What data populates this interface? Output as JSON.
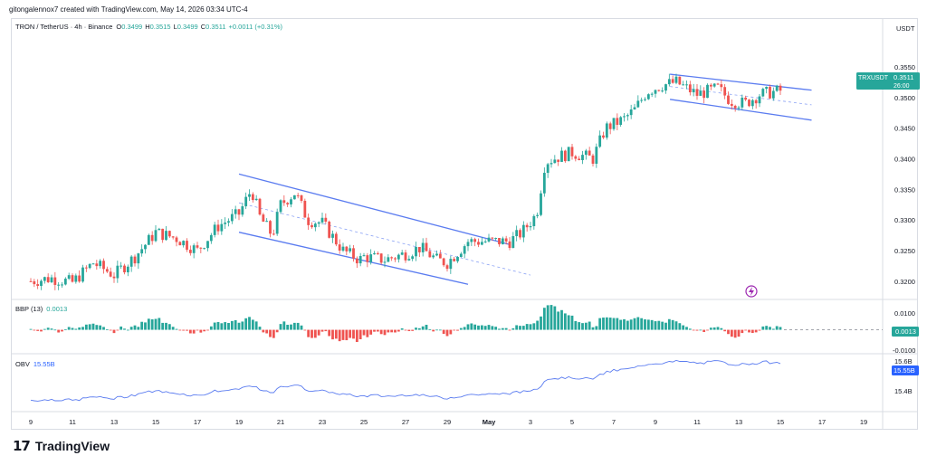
{
  "header": {
    "credit": "gitongalennox7 created with TradingView.com, May 14, 2026 03:34 UTC-4"
  },
  "legend": {
    "symbol": "TRON / TetherUS · 4h · Binance",
    "o_label": "O",
    "o": "0.3499",
    "h_label": "H",
    "h": "0.3515",
    "l_label": "L",
    "l": "0.3499",
    "c_label": "C",
    "c": "0.3511",
    "change": "+0.0011 (+0.31%)"
  },
  "price_axis": {
    "currency": "USDT",
    "ticks": [
      "0.3550",
      "0.3500",
      "0.3450",
      "0.3400",
      "0.3350",
      "0.3300",
      "0.3250",
      "0.3200"
    ],
    "last_label": "TRXUSDT",
    "last_price": "0.3511",
    "countdown": "26:00"
  },
  "bbp": {
    "label": "BBP (13)",
    "value": "0.0013",
    "ticks": [
      "0.0100",
      "-0.0100"
    ],
    "last": "0.0013"
  },
  "obv": {
    "label": "OBV",
    "value": "15.55B",
    "ticks": [
      "15.6B",
      "15.4B"
    ],
    "last": "15.55B"
  },
  "time_axis": {
    "labels": [
      "9",
      "11",
      "13",
      "15",
      "17",
      "19",
      "21",
      "23",
      "25",
      "27",
      "29",
      "May",
      "3",
      "5",
      "7",
      "9",
      "11",
      "13",
      "15",
      "17",
      "19"
    ]
  },
  "colors": {
    "up": "#26a69a",
    "down": "#ef5350",
    "channel": "#5b7cf0",
    "obv_line": "#5b7cf0",
    "last_bg": "#26a69a",
    "obv_bg": "#2962ff"
  },
  "brand": {
    "logo_icon": "tradingview-logo-icon",
    "name": "TradingView"
  },
  "chart_data": {
    "type": "candlestick",
    "interval": "4h",
    "ylim": [
      0.3185,
      0.3575
    ],
    "close_anchors": [
      [
        "Apr 9",
        0.32
      ],
      [
        "Apr 10",
        0.3205
      ],
      [
        "Apr 11",
        0.3198
      ],
      [
        "Apr 12",
        0.323
      ],
      [
        "Apr 13",
        0.321
      ],
      [
        "Apr 14",
        0.324
      ],
      [
        "Apr 15",
        0.328
      ],
      [
        "Apr 16",
        0.327
      ],
      [
        "Apr 17",
        0.325
      ],
      [
        "Apr 18",
        0.329
      ],
      [
        "Apr 19",
        0.331
      ],
      [
        "Apr 19.6",
        0.335
      ],
      [
        "Apr 20",
        0.3305
      ],
      [
        "Apr 20.6",
        0.3275
      ],
      [
        "Apr 21",
        0.3325
      ],
      [
        "Apr 21.7",
        0.3345
      ],
      [
        "Apr 22.3",
        0.33
      ],
      [
        "Apr 23",
        0.3295
      ],
      [
        "Apr 24",
        0.325
      ],
      [
        "Apr 24.8",
        0.3235
      ],
      [
        "Apr 25",
        0.324
      ],
      [
        "Apr 26",
        0.3235
      ],
      [
        "Apr 27",
        0.3245
      ],
      [
        "Apr 27.7",
        0.3255
      ],
      [
        "Apr 28.5",
        0.3235
      ],
      [
        "Apr 29",
        0.323
      ],
      [
        "Apr 30",
        0.3265
      ],
      [
        "May 1",
        0.3265
      ],
      [
        "May 1.6",
        0.328
      ],
      [
        "May 2.3",
        0.331
      ],
      [
        "May 2.7",
        0.3395
      ],
      [
        "May 3.5",
        0.3405
      ],
      [
        "May 4",
        0.341
      ],
      [
        "May 5",
        0.34
      ],
      [
        "May 5.6",
        0.345
      ],
      [
        "May 6.5",
        0.3465
      ],
      [
        "May 7",
        0.348
      ],
      [
        "May 7.6",
        0.351
      ],
      [
        "May 8.3",
        0.352
      ],
      [
        "May 9",
        0.3525
      ],
      [
        "May 10",
        0.3505
      ],
      [
        "May 11",
        0.3515
      ],
      [
        "May 11.6",
        0.3495
      ],
      [
        "May 12.3",
        0.349
      ],
      [
        "May 13",
        0.3505
      ],
      [
        "May 14",
        0.3511
      ]
    ],
    "channels": [
      {
        "name": "",
        "upper": [
          [
            "Apr 19",
            0.3375
          ],
          [
            "May 1",
            0.326
          ]
        ],
        "lower": [
          [
            "Apr 19",
            0.328
          ],
          [
            "Apr 30",
            0.3195
          ]
        ],
        "mid": [
          [
            "Apr 19",
            0.3328
          ],
          [
            "May 2",
            0.321
          ]
        ]
      },
      {
        "name": "",
        "upper": [
          [
            "May 8.7",
            0.3538
          ],
          [
            "May 15.5",
            0.3512
          ]
        ],
        "lower": [
          [
            "May 8.7",
            0.3497
          ],
          [
            "May 15.5",
            0.3463
          ]
        ],
        "mid": [
          [
            "May 8.7",
            0.3518
          ],
          [
            "May 15.5",
            0.3488
          ]
        ]
      }
    ],
    "bbp_range": [
      -0.012,
      0.013
    ],
    "obv_range": [
      15.36,
      15.63
    ],
    "obv_last": 15.55
  }
}
